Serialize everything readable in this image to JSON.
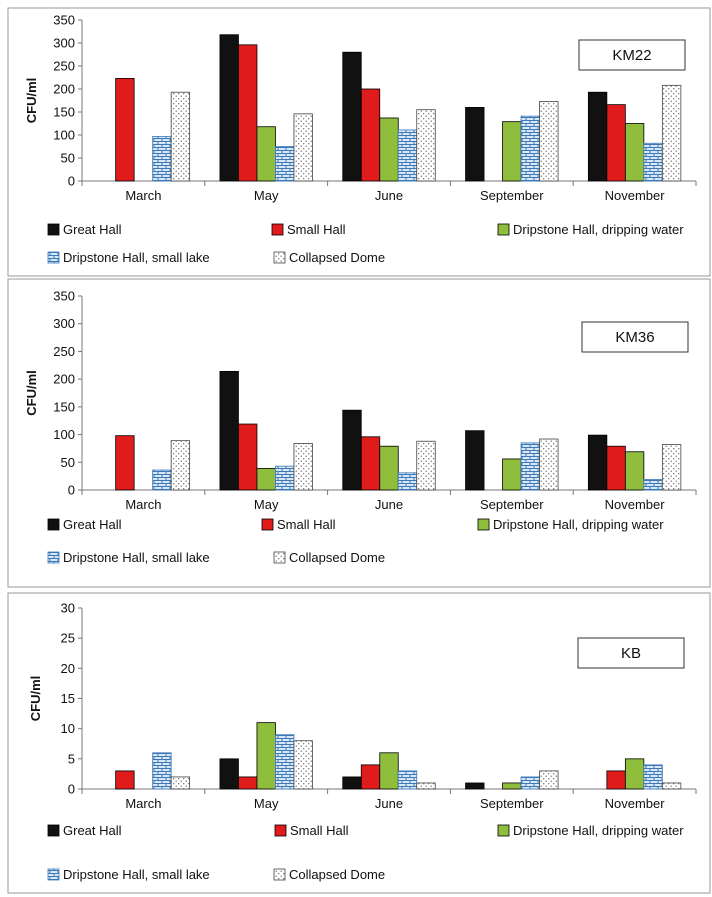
{
  "colors": {
    "great_hall": "#111111",
    "small_hall": "#e01b1b",
    "dripstone_dripping": "#8fbd3c",
    "dripstone_lake": "#d8e8f7",
    "collapsed_dome": "#ffffff"
  },
  "chart_data": [
    {
      "type": "bar",
      "title": "KM22",
      "ylabel": "CFU/ml",
      "ylim": [
        0,
        350
      ],
      "yticks": [
        0,
        50,
        100,
        150,
        200,
        250,
        300,
        350
      ],
      "grid": false,
      "legend_position": "bottom",
      "categories": [
        "March",
        "May",
        "June",
        "September",
        "November"
      ],
      "series": [
        {
          "name": "Great Hall",
          "values": [
            null,
            318,
            280,
            160,
            193
          ]
        },
        {
          "name": "Small Hall",
          "values": [
            223,
            296,
            200,
            null,
            166
          ]
        },
        {
          "name": "Dripstone Hall, dripping water",
          "values": [
            null,
            118,
            137,
            129,
            125
          ]
        },
        {
          "name": "Dripstone Hall, small lake",
          "values": [
            97,
            75,
            111,
            141,
            82
          ]
        },
        {
          "name": "Collapsed Dome",
          "values": [
            193,
            146,
            155,
            173,
            208
          ]
        }
      ]
    },
    {
      "type": "bar",
      "title": "KM36",
      "ylabel": "CFU/ml",
      "ylim": [
        0,
        350
      ],
      "yticks": [
        0,
        50,
        100,
        150,
        200,
        250,
        300,
        350
      ],
      "grid": false,
      "legend_position": "bottom",
      "categories": [
        "March",
        "May",
        "June",
        "September",
        "November"
      ],
      "series": [
        {
          "name": "Great Hall",
          "values": [
            null,
            214,
            144,
            107,
            99
          ]
        },
        {
          "name": "Small Hall",
          "values": [
            98,
            119,
            96,
            null,
            79
          ]
        },
        {
          "name": "Dripstone Hall, dripping water",
          "values": [
            null,
            39,
            79,
            56,
            69
          ]
        },
        {
          "name": "Dripstone Hall, small lake",
          "values": [
            36,
            43,
            31,
            85,
            19
          ]
        },
        {
          "name": "Collapsed Dome",
          "values": [
            89,
            84,
            88,
            92,
            82
          ]
        }
      ]
    },
    {
      "type": "bar",
      "title": "KB",
      "ylabel": "CFU/ml",
      "ylim": [
        0,
        30
      ],
      "yticks": [
        0,
        5,
        10,
        15,
        20,
        25,
        30
      ],
      "grid": false,
      "legend_position": "bottom",
      "categories": [
        "March",
        "May",
        "June",
        "September",
        "November"
      ],
      "series": [
        {
          "name": "Great Hall",
          "values": [
            null,
            5,
            2,
            1,
            null
          ]
        },
        {
          "name": "Small Hall",
          "values": [
            3,
            2,
            4,
            null,
            3
          ]
        },
        {
          "name": "Dripstone Hall, dripping water",
          "values": [
            null,
            11,
            6,
            1,
            5
          ]
        },
        {
          "name": "Dripstone Hall, small lake",
          "values": [
            6,
            9,
            3,
            2,
            4
          ]
        },
        {
          "name": "Collapsed Dome",
          "values": [
            2,
            8,
            1,
            3,
            1
          ]
        }
      ]
    }
  ]
}
